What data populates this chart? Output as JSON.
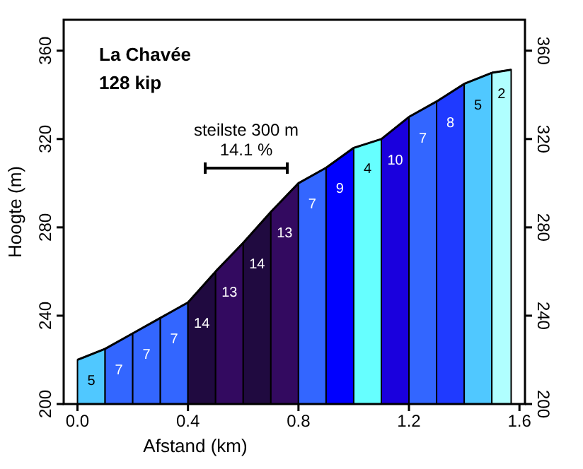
{
  "chart_data": {
    "type": "area",
    "title": "La Chavée",
    "subtitle": "128 kip",
    "xlabel": "Afstand (km)",
    "ylabel": "Hoogte (m)",
    "series": [
      {
        "name": "5",
        "color": "#50c8ff",
        "x": [
          0,
          0.1
        ],
        "values": [
          220,
          225
        ]
      },
      {
        "name": "7",
        "color": "#3366ff",
        "x": [
          0.1,
          0.2
        ],
        "values": [
          225,
          232
        ]
      },
      {
        "name": "7",
        "color": "#3366ff",
        "x": [
          0.2,
          0.3
        ],
        "values": [
          232,
          239
        ]
      },
      {
        "name": "7",
        "color": "#3366ff",
        "x": [
          0.3,
          0.4
        ],
        "values": [
          239,
          246
        ]
      },
      {
        "name": "14",
        "color": "#200a40",
        "x": [
          0.4,
          0.5
        ],
        "values": [
          246,
          260
        ]
      },
      {
        "name": "13",
        "color": "#330a60",
        "x": [
          0.5,
          0.6
        ],
        "values": [
          260,
          273
        ]
      },
      {
        "name": "14",
        "color": "#200a40",
        "x": [
          0.6,
          0.7
        ],
        "values": [
          273,
          287
        ]
      },
      {
        "name": "13",
        "color": "#330a60",
        "x": [
          0.7,
          0.8
        ],
        "values": [
          287,
          300
        ]
      },
      {
        "name": "7",
        "color": "#3366ff",
        "x": [
          0.8,
          0.9
        ],
        "values": [
          300,
          307
        ]
      },
      {
        "name": "9",
        "color": "#0000ff",
        "x": [
          0.9,
          1.0
        ],
        "values": [
          307,
          316
        ]
      },
      {
        "name": "4",
        "color": "#66ffff",
        "x": [
          1.0,
          1.1
        ],
        "values": [
          316,
          320
        ]
      },
      {
        "name": "10",
        "color": "#1a00dd",
        "x": [
          1.1,
          1.2
        ],
        "values": [
          320,
          330
        ]
      },
      {
        "name": "7",
        "color": "#3366ff",
        "x": [
          1.2,
          1.3
        ],
        "values": [
          330,
          337
        ]
      },
      {
        "name": "8",
        "color": "#1f3aff",
        "x": [
          1.3,
          1.4
        ],
        "values": [
          337,
          345
        ]
      },
      {
        "name": "5",
        "color": "#50c8ff",
        "x": [
          1.4,
          1.5
        ],
        "values": [
          345,
          350
        ]
      },
      {
        "name": "2",
        "color": "#b0ffff",
        "x": [
          1.5,
          1.57
        ],
        "values": [
          350,
          351.4
        ]
      }
    ],
    "annotations": [
      "steilste 300 m",
      "14.1 %"
    ],
    "xlim": [
      -0.05,
      1.62
    ],
    "xticks": [
      {
        "value": 0,
        "label": "0.0"
      },
      0.4,
      0.8,
      1.2,
      1.6
    ],
    "ylim": [
      200,
      374
    ],
    "yticks": [
      200,
      240,
      280,
      320,
      360
    ],
    "y2lim": [
      200,
      374
    ],
    "y2ticks": [
      200,
      240,
      280,
      320,
      360
    ]
  }
}
